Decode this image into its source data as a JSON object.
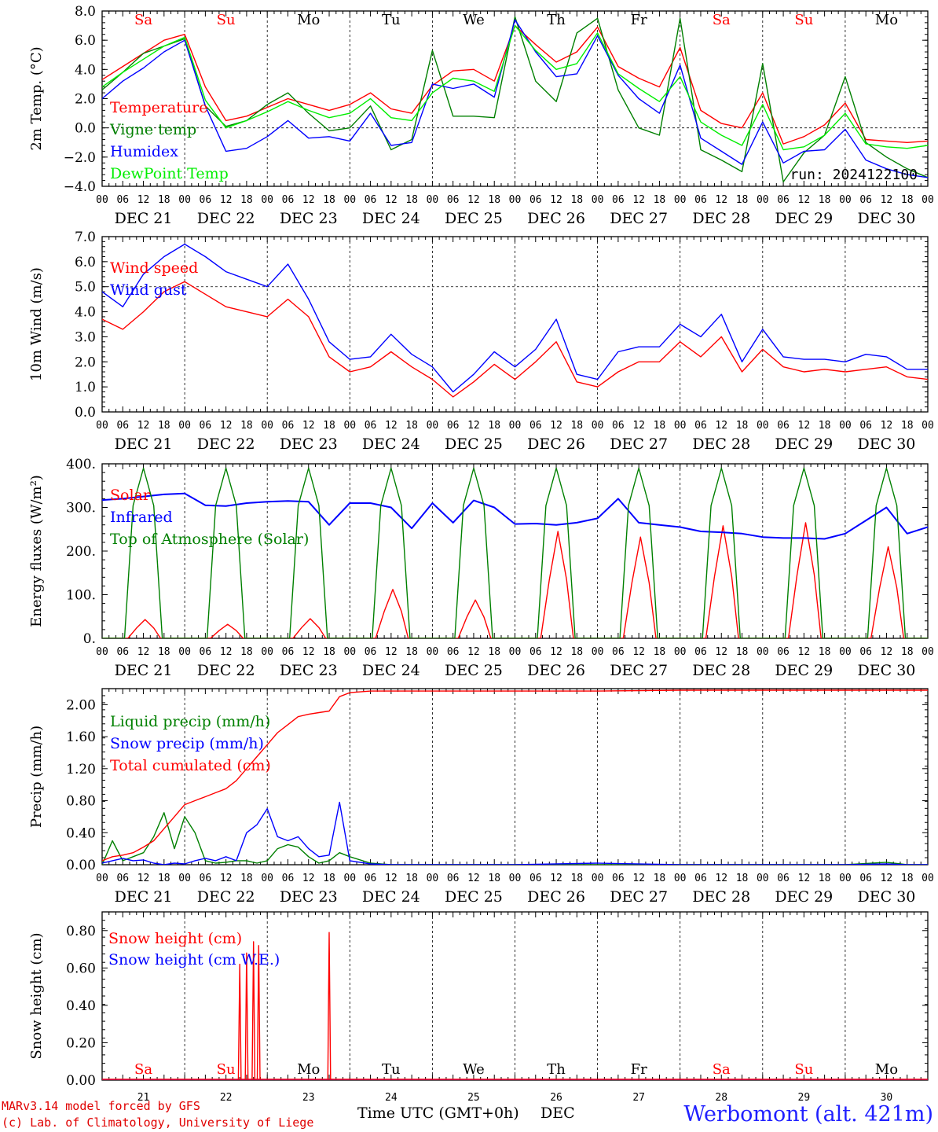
{
  "chart_data": [
    {
      "type": "line",
      "ylabel": "2m Temp. (°C)",
      "ylim": [
        -4.0,
        8.0
      ],
      "yticks": [
        "8.0",
        "6.0",
        "4.0",
        "2.0",
        "0.0",
        "−2.0",
        "−4.0"
      ],
      "ref_line": 0.0,
      "annotation": "run: 2024122100",
      "day_labels": [
        {
          "label": "Sa",
          "color": "#ff0000"
        },
        {
          "label": "Su",
          "color": "#ff0000"
        },
        {
          "label": "Mo",
          "color": "#000000"
        },
        {
          "label": "Tu",
          "color": "#000000"
        },
        {
          "label": "We",
          "color": "#000000"
        },
        {
          "label": "Th",
          "color": "#000000"
        },
        {
          "label": "Fr",
          "color": "#000000"
        },
        {
          "label": "Sa",
          "color": "#ff0000"
        },
        {
          "label": "Su",
          "color": "#ff0000"
        },
        {
          "label": "Mo",
          "color": "#000000"
        }
      ],
      "x_hours": [
        0,
        6,
        12,
        18,
        24,
        30,
        36,
        42,
        48,
        54,
        60,
        66,
        72,
        78,
        84,
        90,
        96,
        102,
        108,
        114,
        120,
        126,
        132,
        138,
        144,
        150,
        156,
        162,
        168,
        174,
        180,
        186,
        192,
        198,
        204,
        210,
        216,
        222,
        228,
        234,
        240
      ],
      "series": [
        {
          "name": "Temperature",
          "color": "#ff0000",
          "values": [
            3.3,
            4.2,
            5.1,
            6.0,
            6.4,
            2.8,
            0.5,
            0.8,
            1.4,
            2.0,
            1.6,
            1.2,
            1.6,
            2.4,
            1.3,
            1.0,
            2.9,
            3.9,
            4.0,
            3.2,
            7.0,
            5.7,
            4.5,
            5.2,
            6.9,
            4.2,
            3.4,
            2.8,
            5.5,
            1.2,
            0.3,
            0.0,
            2.4,
            -1.1,
            -0.6,
            0.2,
            1.7,
            -0.8,
            -0.9,
            -1.0,
            -0.9
          ]
        },
        {
          "name": "Vigne temp",
          "color": "#008000",
          "values": [
            2.6,
            3.8,
            5.1,
            5.6,
            6.1,
            1.5,
            0.1,
            0.5,
            1.6,
            2.4,
            1.0,
            -0.2,
            0.0,
            1.5,
            -1.5,
            -0.8,
            5.3,
            0.8,
            0.8,
            0.7,
            7.6,
            3.2,
            1.8,
            6.5,
            7.5,
            2.6,
            0.0,
            -0.5,
            7.5,
            -1.5,
            -2.2,
            -3.0,
            4.4,
            -3.7,
            -1.7,
            -0.5,
            3.5,
            -1.0,
            -2.0,
            -2.8,
            -3.4
          ]
        },
        {
          "name": "Humidex",
          "color": "#0000ff",
          "values": [
            2.0,
            3.2,
            4.1,
            5.2,
            6.0,
            1.5,
            -1.6,
            -1.4,
            -0.6,
            0.5,
            -0.7,
            -0.6,
            -0.9,
            1.0,
            -1.2,
            -1.0,
            3.0,
            2.7,
            3.0,
            2.1,
            7.4,
            5.2,
            3.5,
            3.7,
            6.3,
            3.6,
            2.0,
            1.0,
            4.3,
            -0.7,
            -1.6,
            -2.5,
            0.4,
            -2.4,
            -1.6,
            -1.5,
            -0.1,
            -2.2,
            -2.8,
            -3.2,
            -3.4
          ]
        },
        {
          "name": "DewPoint Temp",
          "color": "#00ee00",
          "values": [
            2.8,
            3.8,
            4.7,
            5.6,
            6.2,
            1.9,
            0.0,
            0.5,
            1.1,
            1.8,
            1.2,
            0.7,
            1.0,
            2.0,
            0.7,
            0.5,
            2.4,
            3.4,
            3.2,
            2.5,
            7.0,
            5.3,
            4.0,
            4.4,
            6.5,
            3.7,
            2.7,
            1.8,
            3.5,
            0.4,
            -0.5,
            -1.2,
            1.6,
            -1.5,
            -1.3,
            -0.5,
            1.0,
            -1.1,
            -1.3,
            -1.4,
            -1.2
          ]
        }
      ]
    },
    {
      "type": "line",
      "ylabel": "10m Wind (m/s)",
      "ylim": [
        0.0,
        7.0
      ],
      "yticks": [
        "7.0",
        "6.0",
        "5.0",
        "4.0",
        "3.0",
        "2.0",
        "1.0",
        "0.0"
      ],
      "ref_line": 5.0,
      "x_hours": [
        0,
        6,
        12,
        18,
        24,
        30,
        36,
        42,
        48,
        54,
        60,
        66,
        72,
        78,
        84,
        90,
        96,
        102,
        108,
        114,
        120,
        126,
        132,
        138,
        144,
        150,
        156,
        162,
        168,
        174,
        180,
        186,
        192,
        198,
        204,
        210,
        216,
        222,
        228,
        234,
        240
      ],
      "series": [
        {
          "name": "Wind speed",
          "color": "#ff0000",
          "values": [
            3.7,
            3.3,
            4.0,
            4.8,
            5.2,
            4.7,
            4.2,
            4.0,
            3.8,
            4.5,
            3.8,
            2.2,
            1.6,
            1.8,
            2.4,
            1.8,
            1.3,
            0.6,
            1.2,
            1.9,
            1.3,
            2.0,
            2.8,
            1.2,
            1.0,
            1.6,
            2.0,
            2.0,
            2.8,
            2.2,
            3.0,
            1.6,
            2.5,
            1.8,
            1.6,
            1.7,
            1.6,
            1.7,
            1.8,
            1.4,
            1.3
          ]
        },
        {
          "name": "Wind gust",
          "color": "#0000ff",
          "values": [
            4.8,
            4.2,
            5.5,
            6.2,
            6.7,
            6.2,
            5.6,
            5.3,
            5.0,
            5.9,
            4.5,
            2.8,
            2.1,
            2.2,
            3.1,
            2.3,
            1.8,
            0.8,
            1.5,
            2.4,
            1.8,
            2.5,
            3.7,
            1.5,
            1.3,
            2.4,
            2.6,
            2.6,
            3.5,
            3.0,
            3.9,
            2.0,
            3.3,
            2.2,
            2.1,
            2.1,
            2.0,
            2.3,
            2.2,
            1.7,
            1.7
          ]
        }
      ]
    },
    {
      "type": "line",
      "ylabel": "Energy fluxes (W/m²)",
      "ylim": [
        0,
        400
      ],
      "yticks": [
        "400.",
        "300.",
        "200.",
        "100.",
        "0."
      ],
      "solar_peaks": [
        43,
        32,
        45,
        112,
        88,
        245,
        232,
        258,
        265,
        210
      ],
      "toa_peak": 390,
      "series": [
        {
          "name": "Solar",
          "color": "#ff0000"
        },
        {
          "name": "Infrared",
          "color": "#0000ff",
          "x_hours": [
            0,
            6,
            12,
            18,
            24,
            30,
            36,
            42,
            48,
            54,
            60,
            66,
            72,
            78,
            84,
            90,
            96,
            102,
            108,
            114,
            120,
            126,
            132,
            138,
            144,
            150,
            156,
            162,
            168,
            174,
            180,
            186,
            192,
            198,
            204,
            210,
            216,
            222,
            228,
            234,
            240
          ],
          "values": [
            317,
            320,
            325,
            330,
            332,
            305,
            303,
            310,
            313,
            315,
            313,
            260,
            310,
            310,
            300,
            252,
            310,
            265,
            316,
            300,
            262,
            263,
            260,
            265,
            275,
            320,
            265,
            260,
            255,
            245,
            243,
            240,
            232,
            230,
            230,
            228,
            240,
            270,
            300,
            240,
            255
          ]
        },
        {
          "name": "Top of Atmosphere (Solar)",
          "color": "#008000"
        }
      ]
    },
    {
      "type": "line",
      "ylabel": "Precip (mm/h)",
      "ylim": [
        0.0,
        2.2
      ],
      "yticks": [
        "2.00",
        "1.60",
        "1.20",
        "0.80",
        "0.40",
        "0.00"
      ],
      "x_hours": [
        0,
        3,
        6,
        9,
        12,
        15,
        18,
        21,
        24,
        27,
        30,
        33,
        36,
        39,
        42,
        45,
        48,
        51,
        54,
        57,
        60,
        63,
        66,
        69,
        72,
        78,
        84,
        96,
        120,
        144,
        168,
        192,
        216,
        228,
        234,
        240
      ],
      "series": [
        {
          "name": "Liquid precip (mm/h)",
          "color": "#008000",
          "values": [
            0.0,
            0.3,
            0.05,
            0.1,
            0.15,
            0.35,
            0.65,
            0.2,
            0.6,
            0.4,
            0.05,
            0.02,
            0.03,
            0.05,
            0.05,
            0.02,
            0.05,
            0.2,
            0.25,
            0.22,
            0.1,
            0.02,
            0.05,
            0.15,
            0.1,
            0.02,
            0.0,
            0.0,
            0.0,
            0.0,
            0.0,
            0.0,
            0.0,
            0.03,
            0.0,
            0.0
          ]
        },
        {
          "name": "Snow precip (mm/h)",
          "color": "#0000ff",
          "values": [
            0.02,
            0.05,
            0.08,
            0.05,
            0.06,
            0.02,
            0.0,
            0.02,
            0.01,
            0.05,
            0.08,
            0.05,
            0.1,
            0.05,
            0.4,
            0.5,
            0.7,
            0.35,
            0.3,
            0.35,
            0.2,
            0.1,
            0.12,
            0.78,
            0.05,
            0.01,
            0.0,
            0.0,
            0.0,
            0.02,
            0.0,
            0.0,
            0.0,
            0.01,
            0.0,
            0.0
          ]
        },
        {
          "name": "Total cumulated (cm)",
          "color": "#ff0000",
          "values": [
            0.05,
            0.1,
            0.12,
            0.15,
            0.22,
            0.3,
            0.45,
            0.6,
            0.75,
            0.8,
            0.85,
            0.9,
            0.95,
            1.05,
            1.2,
            1.35,
            1.5,
            1.65,
            1.75,
            1.85,
            1.88,
            1.9,
            1.92,
            2.1,
            2.15,
            2.17,
            2.17,
            2.17,
            2.17,
            2.17,
            2.18,
            2.18,
            2.18,
            2.18,
            2.18,
            2.18
          ]
        }
      ]
    },
    {
      "type": "line",
      "ylabel": "Snow height (cm)",
      "ylim": [
        0.0,
        0.9
      ],
      "yticks": [
        "0.80",
        "0.60",
        "0.40",
        "0.20",
        "0.00"
      ],
      "series": [
        {
          "name": "Snow height (cm)",
          "color": "#ff0000",
          "spikes": [
            {
              "hour": 40,
              "value": 0.62
            },
            {
              "hour": 42,
              "value": 0.68
            },
            {
              "hour": 44,
              "value": 0.74
            },
            {
              "hour": 45.5,
              "value": 0.72
            },
            {
              "hour": 66,
              "value": 0.79
            }
          ]
        },
        {
          "name": "Snow height (cm W.E.)",
          "color": "#0000ff",
          "spikes": []
        }
      ]
    }
  ],
  "x_axis": {
    "hour_ticks": [
      "00",
      "06",
      "12",
      "18"
    ],
    "dates": [
      "DEC 21",
      "DEC 22",
      "DEC 23",
      "DEC 24",
      "DEC 25",
      "DEC 26",
      "DEC 27",
      "DEC 28",
      "DEC 29",
      "DEC 30"
    ],
    "bottom_day_numbers": [
      "21",
      "22",
      "23",
      "24",
      "25",
      "26",
      "27",
      "28",
      "29",
      "30"
    ],
    "bottom_last_tick": "00"
  },
  "footer": {
    "model_line": "MARv3.14 model forced by GFS",
    "credit_line": "(c) Lab. of Climatology, University of Liege",
    "xlabel": "Time UTC (GMT+0h)",
    "month": "DEC",
    "station": "Werbomont (alt. 421m)"
  }
}
